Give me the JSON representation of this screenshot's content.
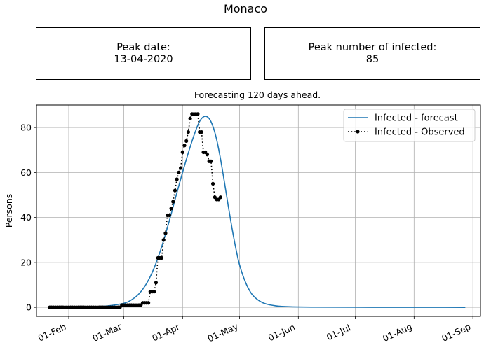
{
  "title": "Monaco",
  "peak_date": {
    "label": "Peak date:",
    "value": "13-04-2020"
  },
  "peak_infected": {
    "label": "Peak number of infected:",
    "value": "85"
  },
  "chart_data": {
    "type": "line",
    "title": "Forecasting 120 days ahead.",
    "xlabel": "",
    "ylabel": "Persons",
    "xlim": [
      "2020-01-15",
      "2020-09-05"
    ],
    "ylim": [
      -4,
      90
    ],
    "grid": true,
    "legend_position": "top-right",
    "x_ticks": [
      {
        "date": "2020-02-01",
        "label": "01-Feb"
      },
      {
        "date": "2020-03-01",
        "label": "01-Mar"
      },
      {
        "date": "2020-04-01",
        "label": "01-Apr"
      },
      {
        "date": "2020-05-01",
        "label": "01-May"
      },
      {
        "date": "2020-06-01",
        "label": "01-Jun"
      },
      {
        "date": "2020-07-01",
        "label": "01-Jul"
      },
      {
        "date": "2020-08-01",
        "label": "01-Aug"
      },
      {
        "date": "2020-09-01",
        "label": "01-Sep"
      }
    ],
    "y_ticks": [
      0,
      20,
      40,
      60,
      80
    ],
    "series": [
      {
        "name": "Infected - forecast",
        "style": "solid",
        "color": "#1f77b4",
        "points": [
          [
            "2020-01-22",
            0
          ],
          [
            "2020-02-05",
            0.1
          ],
          [
            "2020-02-15",
            0.3
          ],
          [
            "2020-02-22",
            0.7
          ],
          [
            "2020-03-01",
            1.8
          ],
          [
            "2020-03-05",
            3.3
          ],
          [
            "2020-03-09",
            6
          ],
          [
            "2020-03-13",
            10.6
          ],
          [
            "2020-03-17",
            17.5
          ],
          [
            "2020-03-21",
            27
          ],
          [
            "2020-03-25",
            38.5
          ],
          [
            "2020-03-29",
            51
          ],
          [
            "2020-04-02",
            63
          ],
          [
            "2020-04-06",
            74
          ],
          [
            "2020-04-09",
            81
          ],
          [
            "2020-04-11",
            84
          ],
          [
            "2020-04-13",
            85
          ],
          [
            "2020-04-15",
            84
          ],
          [
            "2020-04-17",
            80.5
          ],
          [
            "2020-04-19",
            74.5
          ],
          [
            "2020-04-21",
            66
          ],
          [
            "2020-04-23",
            56
          ],
          [
            "2020-04-25",
            45.5
          ],
          [
            "2020-04-27",
            35.5
          ],
          [
            "2020-04-29",
            26.5
          ],
          [
            "2020-05-01",
            19
          ],
          [
            "2020-05-04",
            11.5
          ],
          [
            "2020-05-07",
            6.5
          ],
          [
            "2020-05-10",
            3.8
          ],
          [
            "2020-05-14",
            1.8
          ],
          [
            "2020-05-20",
            0.7
          ],
          [
            "2020-05-28",
            0.25
          ],
          [
            "2020-06-10",
            0.1
          ],
          [
            "2020-07-10",
            0.03
          ],
          [
            "2020-08-28",
            0
          ]
        ]
      },
      {
        "name": "Infected - Observed",
        "style": "dotted",
        "marker": "circle",
        "color": "#000000",
        "start_date": "2020-01-22",
        "values": [
          0,
          0,
          0,
          0,
          0,
          0,
          0,
          0,
          0,
          0,
          0,
          0,
          0,
          0,
          0,
          0,
          0,
          0,
          0,
          0,
          0,
          0,
          0,
          0,
          0,
          0,
          0,
          0,
          0,
          0,
          0,
          0,
          0,
          0,
          0,
          0,
          0,
          0,
          1,
          1,
          1,
          1,
          1,
          1,
          1,
          1,
          1,
          1,
          1,
          2,
          2,
          2,
          2,
          7,
          7,
          7,
          11,
          22,
          22,
          22,
          30,
          33,
          41,
          41,
          44,
          47,
          52,
          57,
          60,
          62,
          69,
          72,
          74,
          78,
          84,
          86,
          86,
          86,
          86,
          78,
          78,
          69,
          69,
          68,
          65,
          65,
          55,
          49,
          48,
          48,
          49
        ]
      }
    ]
  }
}
